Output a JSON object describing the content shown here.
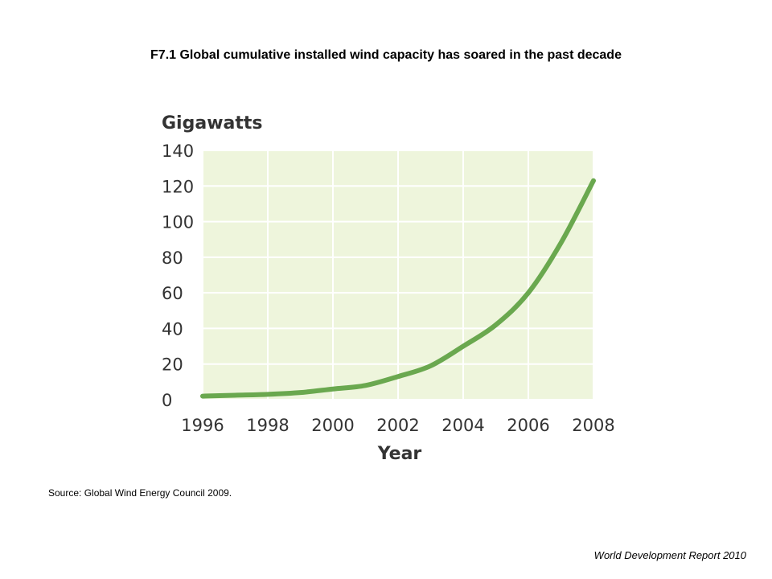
{
  "title": "F7.1 Global cumulative installed wind capacity has soared in the past decade",
  "source": "Source: Global Wind Energy Council 2009.",
  "footer": "World Development Report 2010",
  "colors": {
    "plot_background": "#eef5dc",
    "grid": "#ffffff",
    "line": "#6aa84f",
    "text": "#333333"
  },
  "chart_data": {
    "type": "line",
    "ylabel": "Gigawatts",
    "xlabel": "Year",
    "xlim": [
      1996,
      2008
    ],
    "ylim": [
      0,
      140
    ],
    "x_ticks": [
      1996,
      1998,
      2000,
      2002,
      2004,
      2006,
      2008
    ],
    "y_ticks": [
      0,
      20,
      40,
      60,
      80,
      100,
      120,
      140
    ],
    "grid": true,
    "x": [
      1996,
      1997,
      1998,
      1999,
      2000,
      2001,
      2002,
      2003,
      2004,
      2005,
      2006,
      2007,
      2008
    ],
    "series": [
      {
        "values": [
          2,
          2.5,
          3,
          4,
          6,
          8,
          13,
          19,
          30,
          42,
          60,
          88,
          123
        ]
      }
    ]
  }
}
